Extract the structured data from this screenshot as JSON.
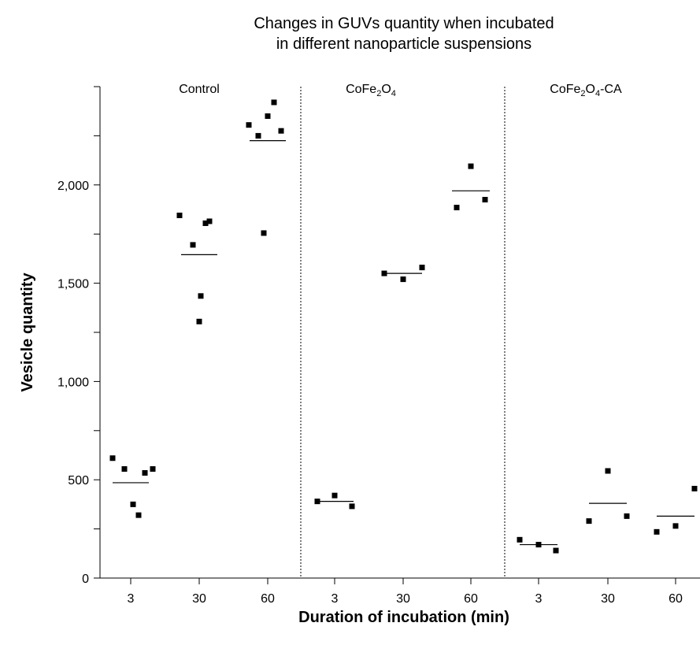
{
  "chart_data": {
    "type": "scatter",
    "title_lines": [
      "Changes in GUVs quantity when incubated",
      "in different nanoparticle suspensions"
    ],
    "xlabel": "Duration of incubation (min)",
    "ylabel": "Vesicle quantity",
    "ylim": [
      0,
      2500
    ],
    "yticks": [
      0,
      500,
      1000,
      1500,
      2000
    ],
    "ytick_labels": [
      "0",
      "500",
      "1,000",
      "1,500",
      "2,000"
    ],
    "categories": [
      "3",
      "30",
      "60",
      "3",
      "30",
      "60",
      "3",
      "30",
      "60"
    ],
    "grid": false,
    "legend": "none",
    "marker_color": "#000000",
    "groups": [
      {
        "name_parts": [
          {
            "t": "Control"
          }
        ],
        "series": [
          {
            "x": "3",
            "values": [
              610,
              555,
              375,
              320,
              535,
              555
            ],
            "mean": 485
          },
          {
            "x": "30",
            "values": [
              1845,
              1695,
              1305,
              1805,
              1435,
              1815
            ],
            "mean": 1645
          },
          {
            "x": "60",
            "values": [
              2305,
              2250,
              1755,
              2350,
              2420,
              2275
            ],
            "mean": 2225
          }
        ]
      },
      {
        "name_parts": [
          {
            "t": "CoFe"
          },
          {
            "t": "2",
            "sub": true
          },
          {
            "t": "O"
          },
          {
            "t": "4",
            "sub": true
          }
        ],
        "series": [
          {
            "x": "3",
            "values": [
              390,
              420,
              365
            ],
            "mean": 390
          },
          {
            "x": "30",
            "values": [
              1550,
              1520,
              1580
            ],
            "mean": 1550
          },
          {
            "x": "60",
            "values": [
              1885,
              2095,
              1925
            ],
            "mean": 1970
          }
        ]
      },
      {
        "name_parts": [
          {
            "t": "CoFe"
          },
          {
            "t": "2",
            "sub": true
          },
          {
            "t": "O"
          },
          {
            "t": "4",
            "sub": true
          },
          {
            "t": "-CA"
          }
        ],
        "series": [
          {
            "x": "3",
            "values": [
              195,
              170,
              140
            ],
            "mean": 170
          },
          {
            "x": "30",
            "values": [
              290,
              545,
              315
            ],
            "mean": 380
          },
          {
            "x": "60",
            "values": [
              235,
              265,
              455
            ],
            "mean": 315
          }
        ]
      }
    ]
  }
}
